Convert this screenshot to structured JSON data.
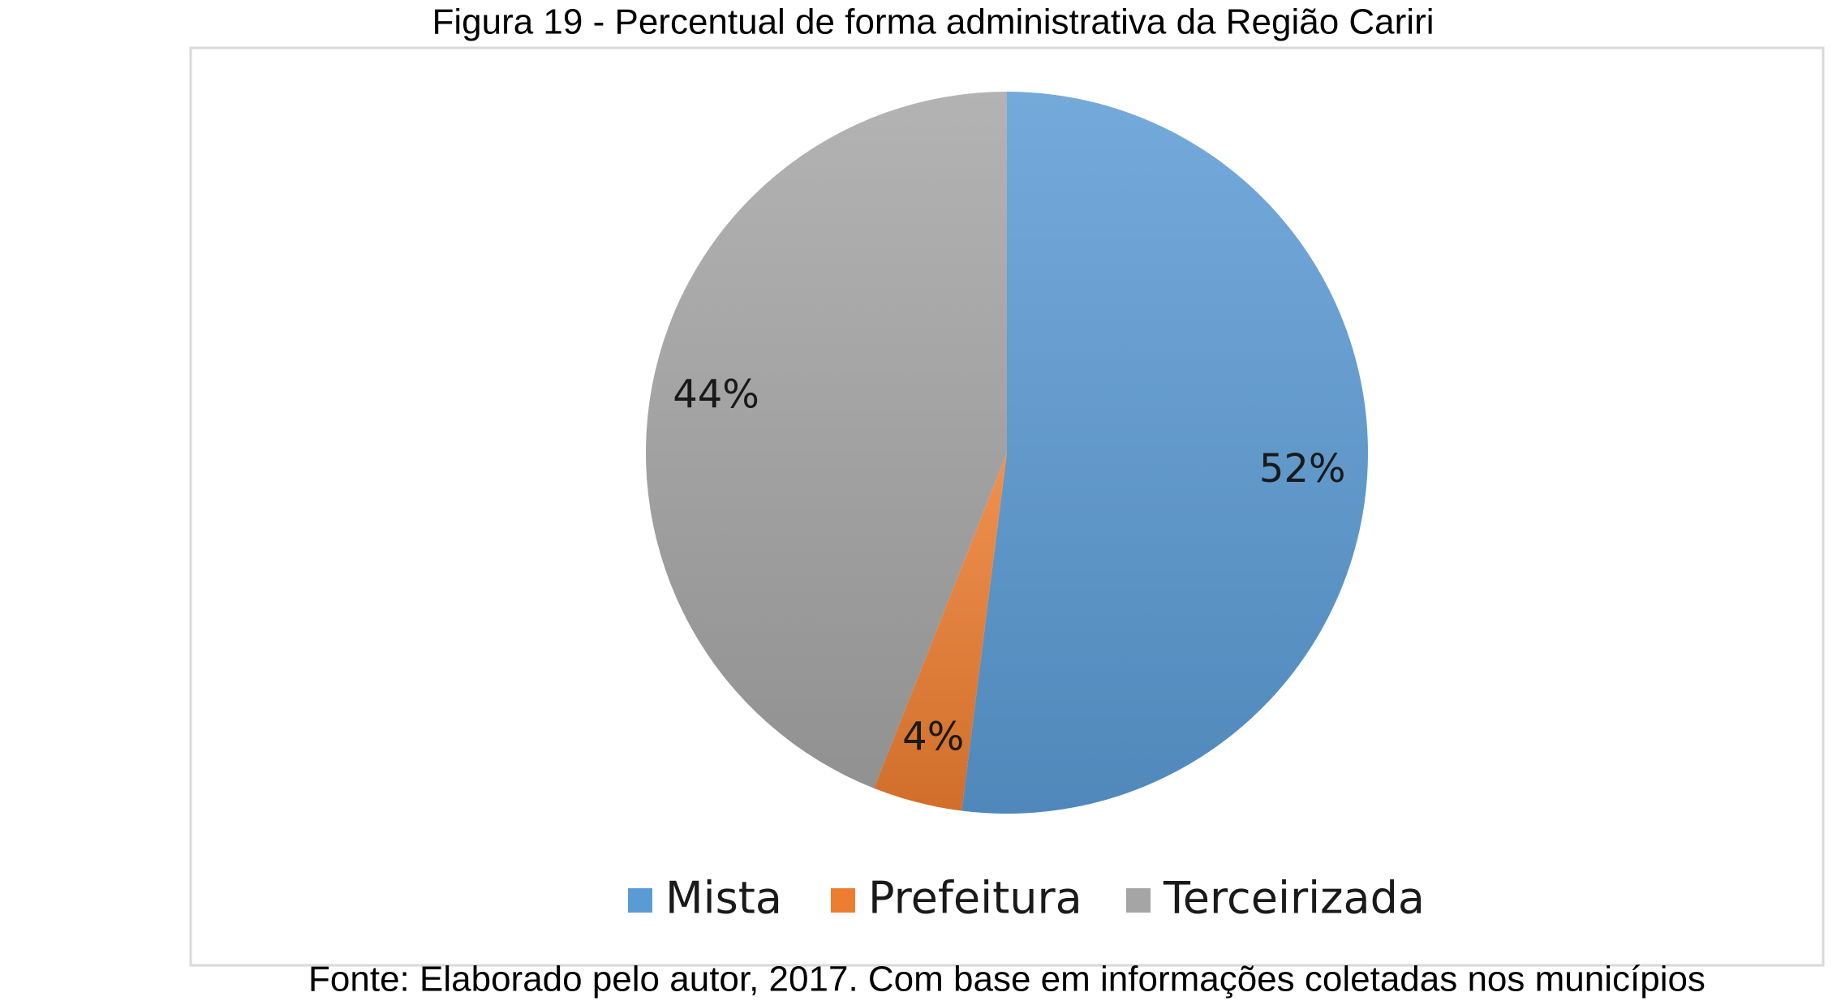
{
  "chart_data": {
    "type": "pie",
    "title": "Figura 19 - Percentual de forma administrativa da Região Cariri",
    "categories": [
      "Mista",
      "Prefeitura",
      "Terceirizada"
    ],
    "values": [
      52,
      4,
      44
    ],
    "value_labels": [
      "52%",
      "4%",
      "44%"
    ],
    "colors": [
      "#5b9bd5",
      "#ed7d31",
      "#a5a5a5"
    ],
    "legend": "bottom",
    "source": "Fonte: Elaborado pelo autor, 2017. Com base em informações coletadas nos municípios"
  }
}
